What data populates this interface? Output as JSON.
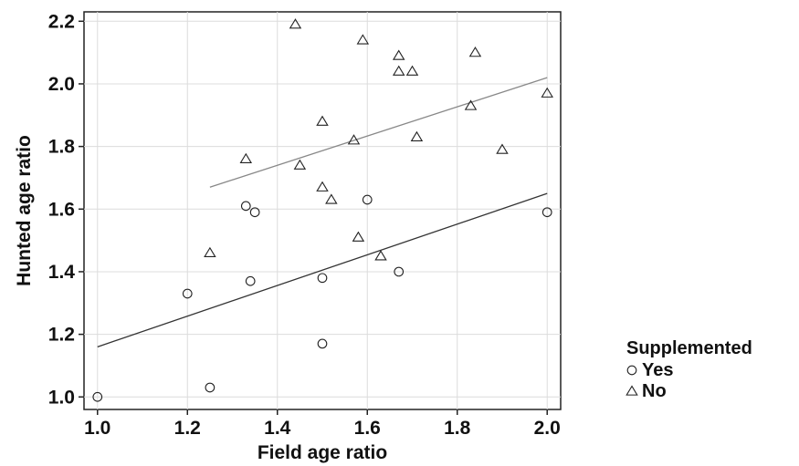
{
  "chart_data": {
    "type": "scatter",
    "xlabel": "Field age ratio",
    "ylabel": "Hunted age ratio",
    "xlim": [
      0.97,
      2.03
    ],
    "ylim": [
      0.96,
      2.23
    ],
    "x_ticks": [
      1.0,
      1.2,
      1.4,
      1.6,
      1.8,
      2.0
    ],
    "y_ticks": [
      1.0,
      1.2,
      1.4,
      1.6,
      1.8,
      2.0,
      2.2
    ],
    "x_tick_labels": [
      "1.0",
      "1.2",
      "1.4",
      "1.6",
      "1.8",
      "2.0"
    ],
    "y_tick_labels": [
      "1.0",
      "1.2",
      "1.4",
      "1.6",
      "1.8",
      "2.0",
      "2.2"
    ],
    "grid": true,
    "legend": {
      "title": "Supplemented",
      "placement": "right-bottom",
      "entries": [
        {
          "label": "Yes",
          "marker": "circle"
        },
        {
          "label": "No",
          "marker": "triangle"
        }
      ]
    },
    "series": [
      {
        "name": "Yes",
        "marker": "circle",
        "points": [
          [
            1.0,
            1.0
          ],
          [
            1.2,
            1.33
          ],
          [
            1.25,
            1.03
          ],
          [
            1.33,
            1.61
          ],
          [
            1.34,
            1.37
          ],
          [
            1.35,
            1.59
          ],
          [
            1.5,
            1.38
          ],
          [
            1.5,
            1.17
          ],
          [
            1.6,
            1.63
          ],
          [
            1.67,
            1.4
          ],
          [
            2.0,
            1.59
          ]
        ],
        "fit": {
          "x": [
            1.0,
            2.0
          ],
          "y": [
            1.16,
            1.65
          ]
        },
        "fit_color": "#333333"
      },
      {
        "name": "No",
        "marker": "triangle",
        "points": [
          [
            1.25,
            1.46
          ],
          [
            1.33,
            1.76
          ],
          [
            1.44,
            2.19
          ],
          [
            1.45,
            1.74
          ],
          [
            1.5,
            1.88
          ],
          [
            1.5,
            1.67
          ],
          [
            1.52,
            1.63
          ],
          [
            1.57,
            1.82
          ],
          [
            1.58,
            1.51
          ],
          [
            1.59,
            2.14
          ],
          [
            1.63,
            1.45
          ],
          [
            1.67,
            2.09
          ],
          [
            1.67,
            2.04
          ],
          [
            1.7,
            2.04
          ],
          [
            1.71,
            1.83
          ],
          [
            1.83,
            1.93
          ],
          [
            1.84,
            2.1
          ],
          [
            1.9,
            1.79
          ],
          [
            2.0,
            1.97
          ]
        ],
        "fit": {
          "x": [
            1.25,
            2.0
          ],
          "y": [
            1.67,
            2.02
          ]
        },
        "fit_color": "#888888"
      }
    ]
  }
}
